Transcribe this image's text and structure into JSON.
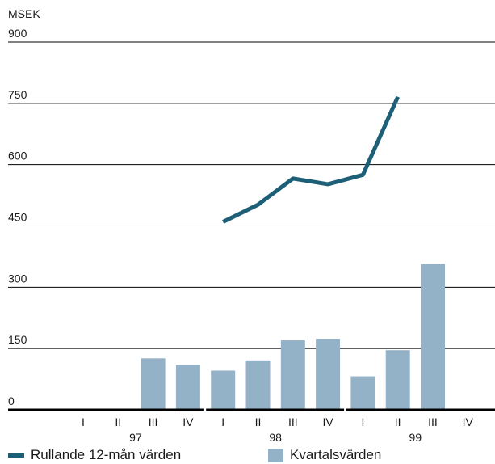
{
  "chart_data": {
    "type": "bar",
    "ylabel": "MSEK",
    "yticks": [
      0,
      150,
      300,
      450,
      600,
      750,
      900
    ],
    "ylim": [
      0,
      900
    ],
    "grid": true,
    "years": [
      {
        "label": "97",
        "quarters": [
          "I",
          "II",
          "III",
          "IV"
        ]
      },
      {
        "label": "98",
        "quarters": [
          "I",
          "II",
          "III",
          "IV"
        ]
      },
      {
        "label": "99",
        "quarters": [
          "I",
          "II",
          "III",
          "IV"
        ]
      }
    ],
    "series": [
      {
        "name": "Kvartalsvärden",
        "kind": "bar",
        "values": [
          null,
          null,
          126,
          110,
          96,
          121,
          170,
          174,
          82,
          146,
          357,
          null
        ]
      },
      {
        "name": "Rullande 12-mån värden",
        "kind": "line",
        "values": [
          null,
          null,
          null,
          null,
          460,
          502,
          566,
          552,
          575,
          766,
          null,
          null
        ]
      }
    ],
    "colors": {
      "bar": "#93b2c8",
      "line": "#1e5f78",
      "grid": "#000000"
    },
    "legend_position": "bottom"
  }
}
